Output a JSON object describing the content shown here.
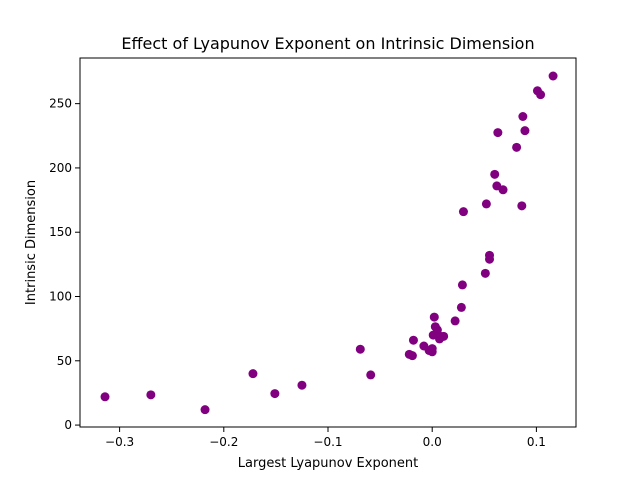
{
  "chart_data": {
    "type": "scatter",
    "title": "Effect of Lyapunov Exponent on Intrinsic Dimension",
    "xlabel": "Largest Lyapunov Exponent",
    "ylabel": "Intrinsic Dimension",
    "xlim": [
      -0.338,
      0.138
    ],
    "ylim": [
      -1.5,
      285.5
    ],
    "xticks": [
      -0.3,
      -0.2,
      -0.1,
      0.0,
      0.1
    ],
    "xtick_labels": [
      "−0.3",
      "−0.2",
      "−0.1",
      "0.0",
      "0.1"
    ],
    "yticks": [
      0,
      50,
      100,
      150,
      200,
      250
    ],
    "ytick_labels": [
      "0",
      "50",
      "100",
      "150",
      "200",
      "250"
    ],
    "grid": false,
    "legend": "none",
    "marker_color": "#800080",
    "points": [
      {
        "x": -0.314,
        "y": 22
      },
      {
        "x": -0.27,
        "y": 23.5
      },
      {
        "x": -0.218,
        "y": 12
      },
      {
        "x": -0.172,
        "y": 40
      },
      {
        "x": -0.151,
        "y": 24.5
      },
      {
        "x": -0.125,
        "y": 31
      },
      {
        "x": -0.069,
        "y": 59
      },
      {
        "x": -0.059,
        "y": 39
      },
      {
        "x": -0.022,
        "y": 55
      },
      {
        "x": -0.019,
        "y": 54
      },
      {
        "x": -0.018,
        "y": 66
      },
      {
        "x": -0.008,
        "y": 61.5
      },
      {
        "x": -0.003,
        "y": 58
      },
      {
        "x": 0.0,
        "y": 57
      },
      {
        "x": 0.0,
        "y": 59.5
      },
      {
        "x": 0.001,
        "y": 70
      },
      {
        "x": 0.002,
        "y": 84
      },
      {
        "x": 0.003,
        "y": 76.5
      },
      {
        "x": 0.005,
        "y": 74
      },
      {
        "x": 0.007,
        "y": 67
      },
      {
        "x": 0.008,
        "y": 69
      },
      {
        "x": 0.011,
        "y": 69
      },
      {
        "x": 0.022,
        "y": 81
      },
      {
        "x": 0.028,
        "y": 91.5
      },
      {
        "x": 0.029,
        "y": 109
      },
      {
        "x": 0.03,
        "y": 166
      },
      {
        "x": 0.051,
        "y": 118
      },
      {
        "x": 0.052,
        "y": 172
      },
      {
        "x": 0.055,
        "y": 129
      },
      {
        "x": 0.055,
        "y": 132
      },
      {
        "x": 0.06,
        "y": 195
      },
      {
        "x": 0.062,
        "y": 186
      },
      {
        "x": 0.063,
        "y": 227.5
      },
      {
        "x": 0.068,
        "y": 183
      },
      {
        "x": 0.081,
        "y": 216
      },
      {
        "x": 0.086,
        "y": 170.5
      },
      {
        "x": 0.087,
        "y": 240
      },
      {
        "x": 0.089,
        "y": 229
      },
      {
        "x": 0.101,
        "y": 260
      },
      {
        "x": 0.104,
        "y": 257
      },
      {
        "x": 0.116,
        "y": 271.5
      }
    ]
  }
}
